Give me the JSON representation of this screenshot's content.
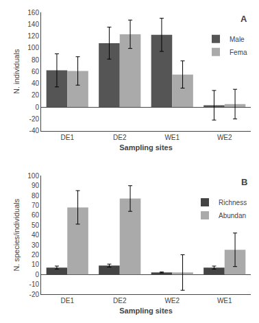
{
  "chart_data": [
    {
      "type": "bar",
      "xlabel": "Sampling sites",
      "ylabel": "N. individuals",
      "annotations": [
        "A"
      ],
      "categories": [
        "DE1",
        "DE2",
        "WE1",
        "WE2"
      ],
      "series": [
        {
          "name": "Male",
          "color": "#555555",
          "values": [
            62,
            108,
            122,
            3
          ],
          "errors": [
            28,
            27,
            28,
            25
          ]
        },
        {
          "name": "Fema",
          "color": "#aaaaaa",
          "values": [
            61,
            123,
            55,
            5
          ],
          "errors": [
            24,
            24,
            23,
            25
          ]
        }
      ],
      "ylim": [
        -40,
        160
      ],
      "yticks": [
        -40,
        -20,
        0,
        20,
        40,
        60,
        80,
        100,
        120,
        140,
        160
      ],
      "grid": false,
      "legend": "upper right"
    },
    {
      "type": "bar",
      "xlabel": "Sampling sites",
      "ylabel": "N. species/individuals",
      "annotations": [
        "B"
      ],
      "categories": [
        "DE1",
        "DE2",
        "WE2",
        "WE1"
      ],
      "series": [
        {
          "name": "Richness",
          "color": "#444444",
          "values": [
            7,
            9,
            2,
            7
          ],
          "errors": [
            1.5,
            1.5,
            0.5,
            1.5
          ]
        },
        {
          "name": "Abundan",
          "color": "#aaaaaa",
          "values": [
            68,
            77,
            2,
            25
          ],
          "errors": [
            17,
            13,
            18,
            17
          ]
        }
      ],
      "ylim": [
        -20,
        100
      ],
      "yticks": [
        -20,
        -10,
        0,
        10,
        20,
        30,
        40,
        50,
        60,
        70,
        80,
        90,
        100
      ],
      "grid": false,
      "legend": "upper right"
    }
  ]
}
